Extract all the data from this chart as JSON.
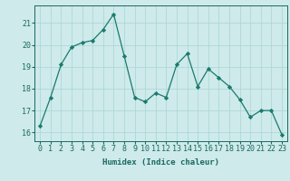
{
  "x": [
    0,
    1,
    2,
    3,
    4,
    5,
    6,
    7,
    8,
    9,
    10,
    11,
    12,
    13,
    14,
    15,
    16,
    17,
    18,
    19,
    20,
    21,
    22,
    23
  ],
  "y": [
    16.3,
    17.6,
    19.1,
    19.9,
    20.1,
    20.2,
    20.7,
    21.4,
    19.5,
    17.6,
    17.4,
    17.8,
    17.6,
    19.1,
    19.6,
    18.1,
    18.9,
    18.5,
    18.1,
    17.5,
    16.7,
    17.0,
    17.0,
    15.9
  ],
  "line_color": "#1a7a6e",
  "marker": "D",
  "marker_size": 2.2,
  "bg_color": "#ceeaea",
  "grid_color": "#aad4d4",
  "xlabel": "Humidex (Indice chaleur)",
  "ylim": [
    15.6,
    21.8
  ],
  "yticks": [
    16,
    17,
    18,
    19,
    20,
    21
  ],
  "xticks": [
    0,
    1,
    2,
    3,
    4,
    5,
    6,
    7,
    8,
    9,
    10,
    11,
    12,
    13,
    14,
    15,
    16,
    17,
    18,
    19,
    20,
    21,
    22,
    23
  ],
  "xlabel_fontsize": 6.5,
  "tick_fontsize": 6.0,
  "tick_color": "#1a6a60",
  "label_color": "#1a6a60",
  "spine_color": "#1a6a60",
  "linewidth": 0.9
}
